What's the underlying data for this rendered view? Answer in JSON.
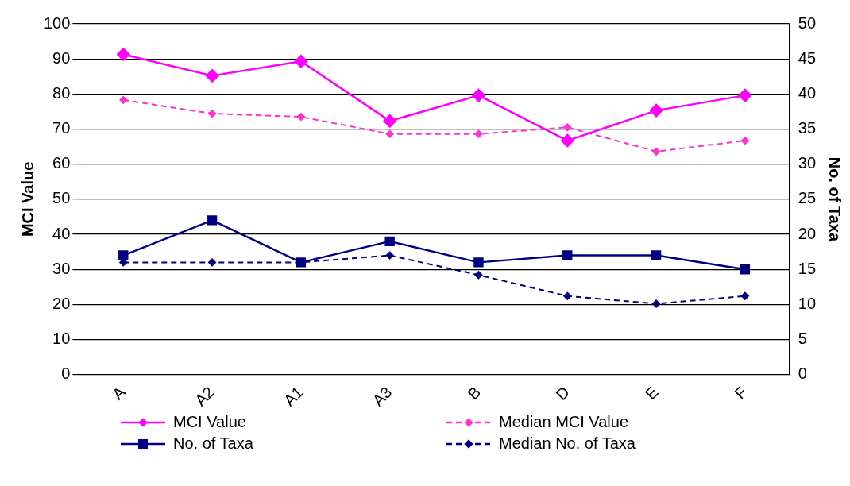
{
  "chart_data": {
    "type": "line",
    "categories": [
      "A",
      "A2",
      "A1",
      "A3",
      "B",
      "D",
      "E",
      "F"
    ],
    "ylabel": "MCI Value",
    "y2label": "No. of Taxa",
    "ylim": [
      0,
      100
    ],
    "yticks": [
      0,
      10,
      20,
      30,
      40,
      50,
      60,
      70,
      80,
      90,
      100
    ],
    "y2lim": [
      0,
      50
    ],
    "y2ticks": [
      0,
      5,
      10,
      15,
      20,
      25,
      30,
      35,
      40,
      45,
      50
    ],
    "grid": "y",
    "legend": "bottom",
    "series": [
      {
        "name": "MCI Value",
        "color": "#ff00ff",
        "marker": "diamond",
        "line_style": "solid",
        "values": [
          91.3,
          85.2,
          89.3,
          72.3,
          79.6,
          66.7,
          75.3,
          79.6
        ]
      },
      {
        "name": "Median MCI Value",
        "color": "#ff33cc",
        "marker": "diamond",
        "line_style": "dashed",
        "values": [
          78.3,
          74.4,
          73.5,
          68.6,
          68.6,
          70.5,
          63.6,
          66.7
        ]
      },
      {
        "name": "No. of Taxa",
        "color": "#000080",
        "marker": "square",
        "line_style": "solid",
        "axis": "y2",
        "values": [
          17,
          22,
          16,
          19,
          16,
          17,
          17,
          15
        ]
      },
      {
        "name": "Median No. of Taxa",
        "color": "#000080",
        "marker": "diamond",
        "line_style": "dashed",
        "axis": "y2",
        "values": [
          16,
          16,
          16,
          17,
          14.2,
          11.2,
          10.1,
          11.2
        ]
      }
    ]
  }
}
